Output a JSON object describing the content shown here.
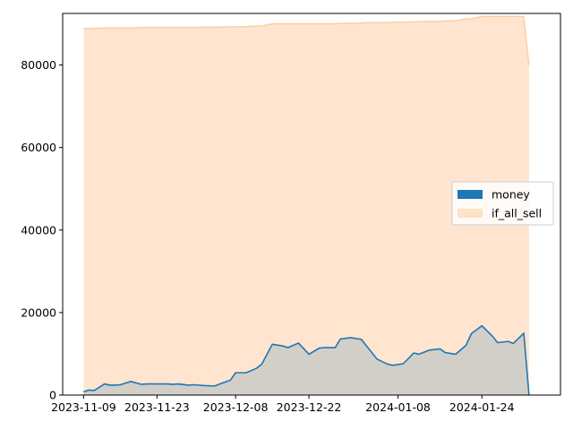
{
  "chart_data": {
    "type": "area",
    "title": "",
    "xlabel": "",
    "ylabel": "",
    "ylim": [
      0,
      92500
    ],
    "xlim": [
      "2023-11-05",
      "2024-02-08"
    ],
    "grid": false,
    "legend_position": "center-right",
    "x_ticks": [
      "2023-11-09",
      "2023-11-23",
      "2023-12-08",
      "2023-12-22",
      "2024-01-08",
      "2024-01-24"
    ],
    "y_ticks": [
      0,
      20000,
      40000,
      60000,
      80000
    ],
    "x": [
      "2023-11-09",
      "2023-11-10",
      "2023-11-11",
      "2023-11-13",
      "2023-11-14",
      "2023-11-15",
      "2023-11-16",
      "2023-11-18",
      "2023-11-20",
      "2023-11-21",
      "2023-11-23",
      "2023-11-25",
      "2023-11-26",
      "2023-11-27",
      "2023-11-29",
      "2023-11-30",
      "2023-12-02",
      "2023-12-04",
      "2023-12-05",
      "2023-12-07",
      "2023-12-08",
      "2023-12-10",
      "2023-12-12",
      "2023-12-13",
      "2023-12-15",
      "2023-12-17",
      "2023-12-18",
      "2023-12-20",
      "2023-12-22",
      "2023-12-24",
      "2023-12-25",
      "2023-12-27",
      "2023-12-28",
      "2023-12-30",
      "2024-01-01",
      "2024-01-02",
      "2024-01-04",
      "2024-01-06",
      "2024-01-07",
      "2024-01-09",
      "2024-01-11",
      "2024-01-12",
      "2024-01-14",
      "2024-01-16",
      "2024-01-17",
      "2024-01-19",
      "2024-01-21",
      "2024-01-22",
      "2024-01-24",
      "2024-01-26",
      "2024-01-27",
      "2024-01-29",
      "2024-01-30",
      "2024-02-01",
      "2024-02-02"
    ],
    "series": [
      {
        "name": "money",
        "color": "#1f77b4",
        "values": [
          800,
          1200,
          1100,
          2700,
          2400,
          2400,
          2500,
          3300,
          2600,
          2700,
          2700,
          2700,
          2600,
          2700,
          2400,
          2500,
          2300,
          2200,
          2700,
          3600,
          5400,
          5400,
          6500,
          7500,
          12300,
          11900,
          11500,
          12600,
          9900,
          11400,
          11500,
          11500,
          13600,
          13900,
          13500,
          11900,
          8700,
          7500,
          7200,
          7600,
          10200,
          9900,
          10900,
          11200,
          10300,
          9900,
          12100,
          14900,
          16800,
          14300,
          12700,
          13000,
          12500,
          15000,
          0
        ]
      },
      {
        "name": "if_all_sell",
        "color": "#ff7f0e",
        "values": [
          88900,
          88900,
          88900,
          89000,
          89000,
          89000,
          89000,
          89000,
          89100,
          89100,
          89100,
          89100,
          89100,
          89100,
          89100,
          89100,
          89200,
          89200,
          89200,
          89300,
          89300,
          89300,
          89500,
          89500,
          90000,
          90000,
          90000,
          90000,
          90000,
          90000,
          90000,
          90000,
          90100,
          90200,
          90200,
          90300,
          90300,
          90300,
          90400,
          90400,
          90500,
          90500,
          90600,
          90600,
          90700,
          90700,
          91200,
          91200,
          91800,
          91800,
          91800,
          91800,
          91800,
          91800,
          80000
        ]
      }
    ]
  }
}
